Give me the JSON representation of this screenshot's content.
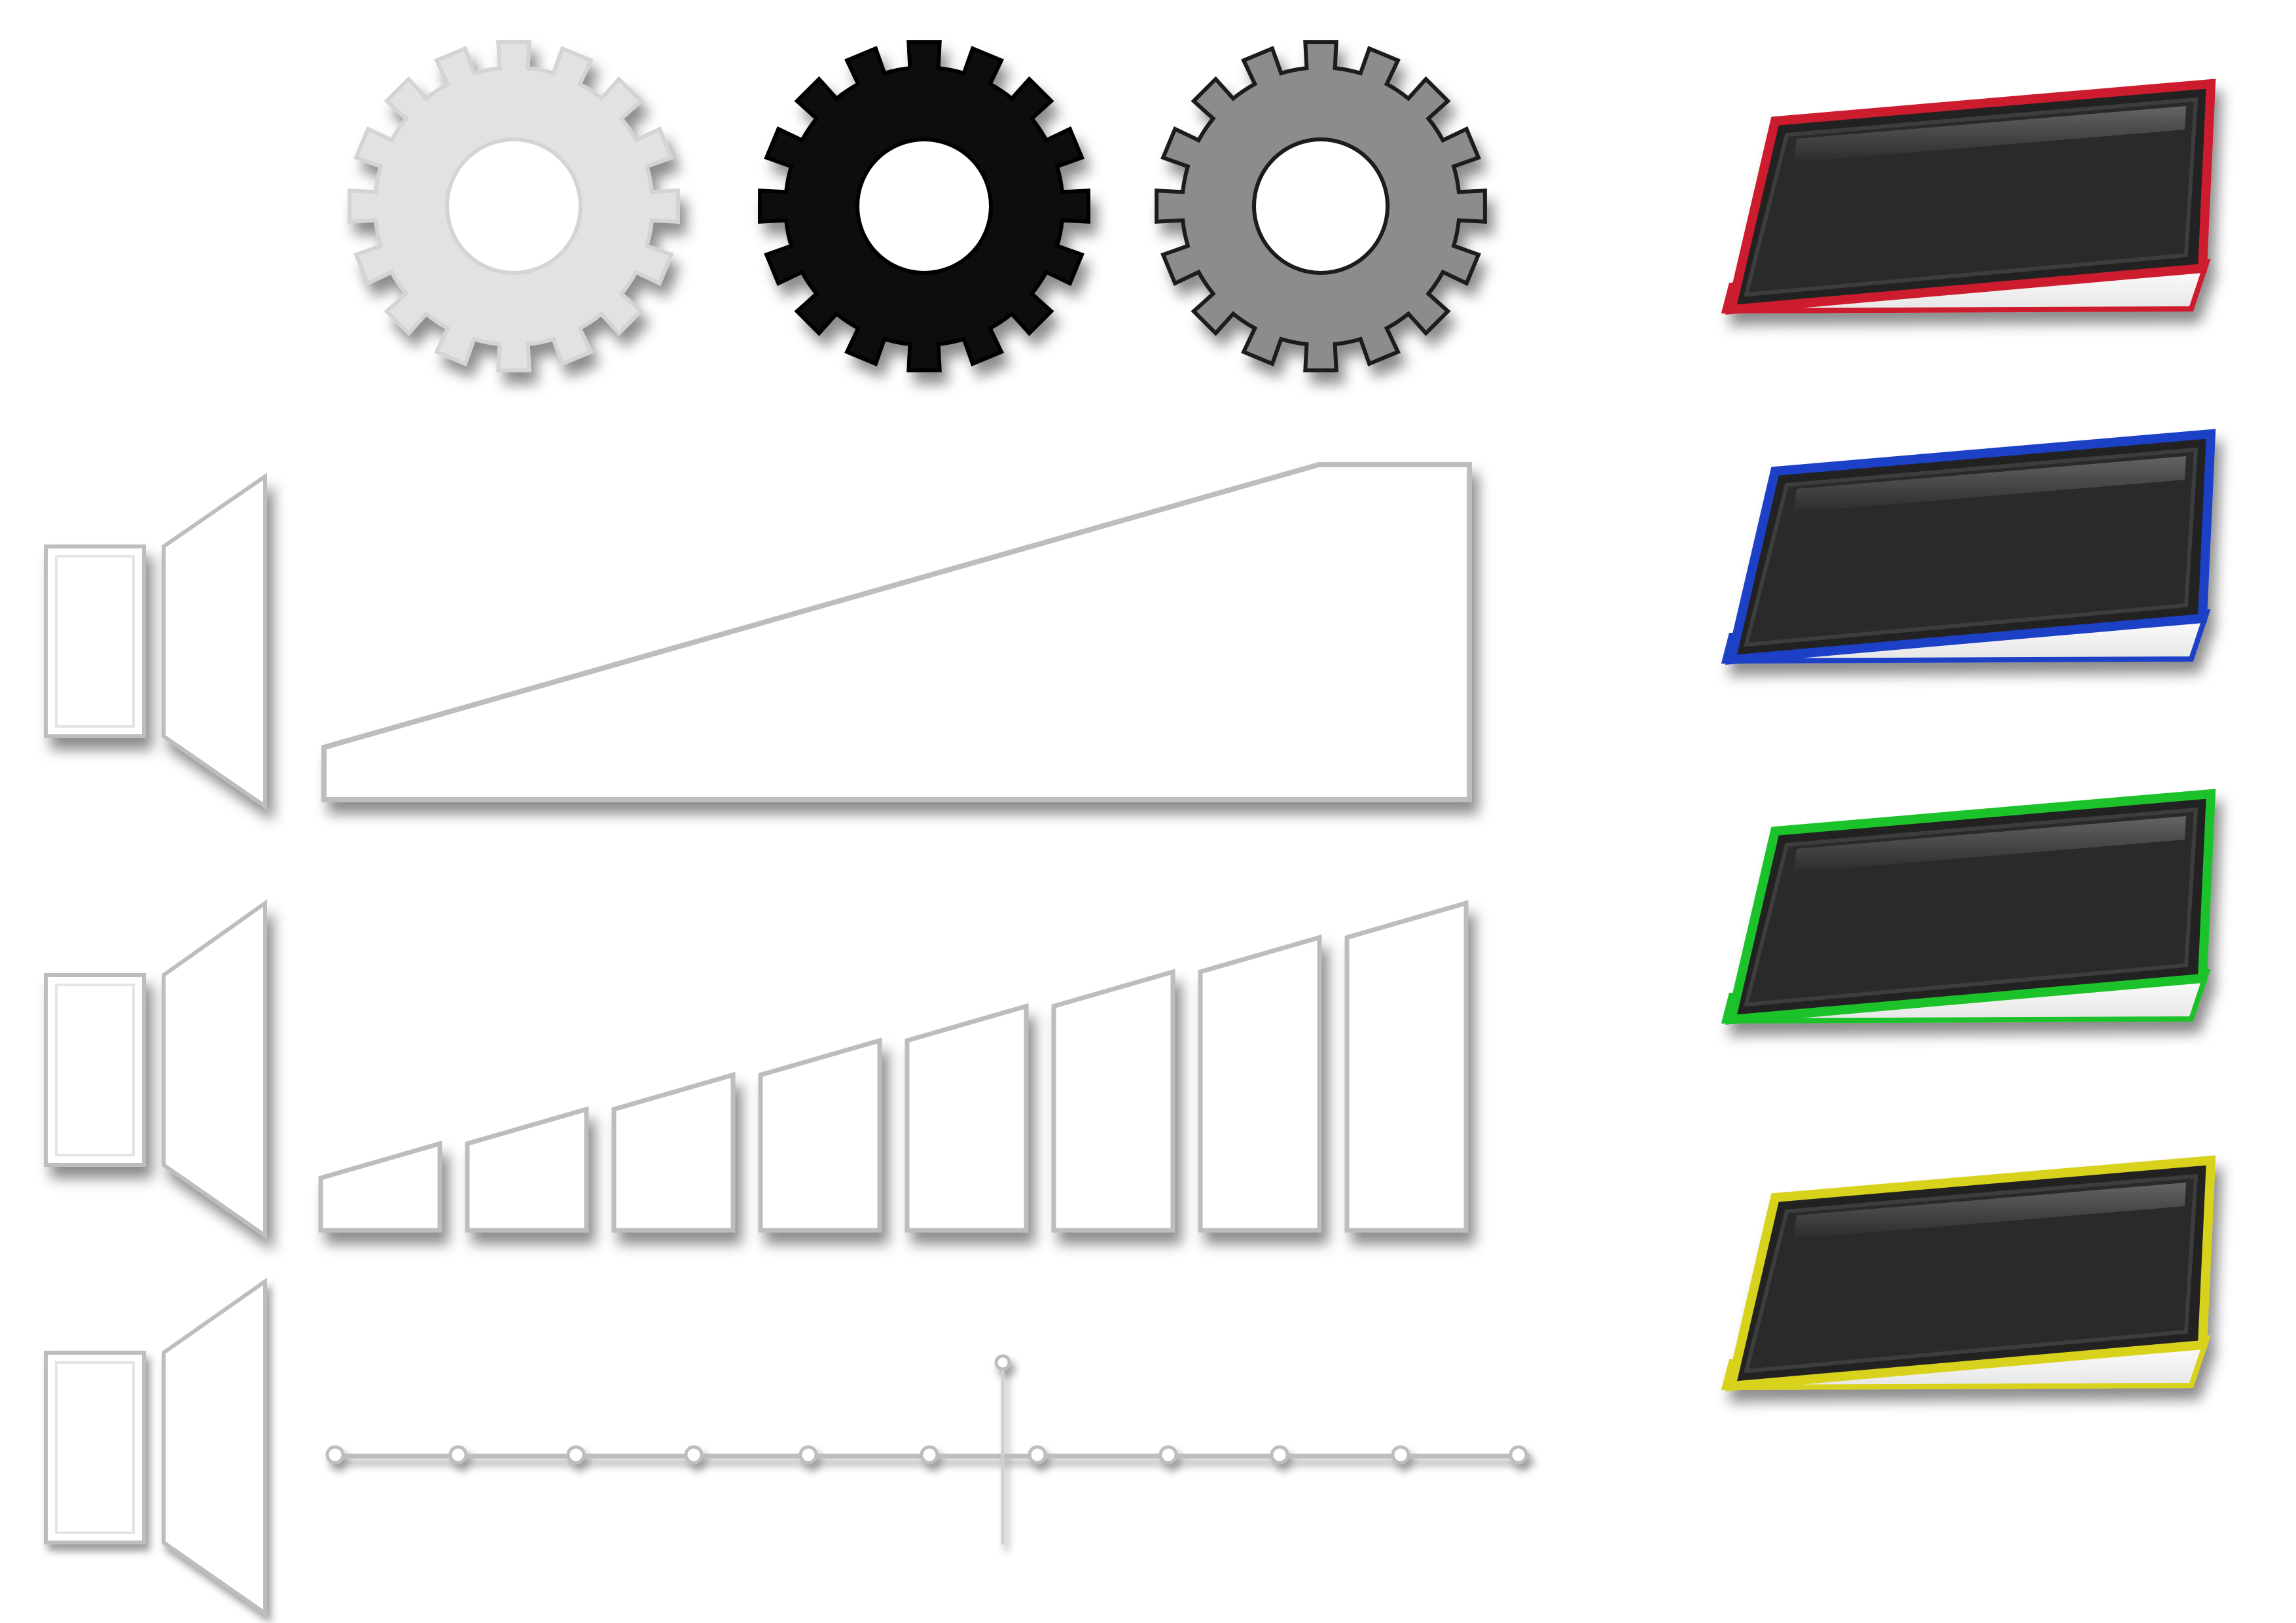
{
  "gears": [
    {
      "name": "gear-light",
      "fill": "#e2e2e2",
      "stroke": "#d4d4d4",
      "hole": "#ffffff"
    },
    {
      "name": "gear-black",
      "fill": "#111111",
      "stroke": "#000000",
      "hole": "#ffffff"
    },
    {
      "name": "gear-gray",
      "fill": "#8c8c8c",
      "stroke": "#1a1a1a",
      "hole": "#ffffff"
    }
  ],
  "panels": [
    {
      "name": "panel-red",
      "border": "#cc1a2e",
      "screen": "#2b2b2b"
    },
    {
      "name": "panel-blue",
      "border": "#1f3fc6",
      "screen": "#2b2b2b"
    },
    {
      "name": "panel-green",
      "border": "#1fc22a",
      "screen": "#2b2b2b"
    },
    {
      "name": "panel-yellow",
      "border": "#d8d21f",
      "screen": "#2b2b2b"
    }
  ],
  "volume": {
    "icon_color": "#ffffff",
    "continuous_level": 1.0,
    "stepped_bars": 8,
    "slider_position": 0.56
  }
}
